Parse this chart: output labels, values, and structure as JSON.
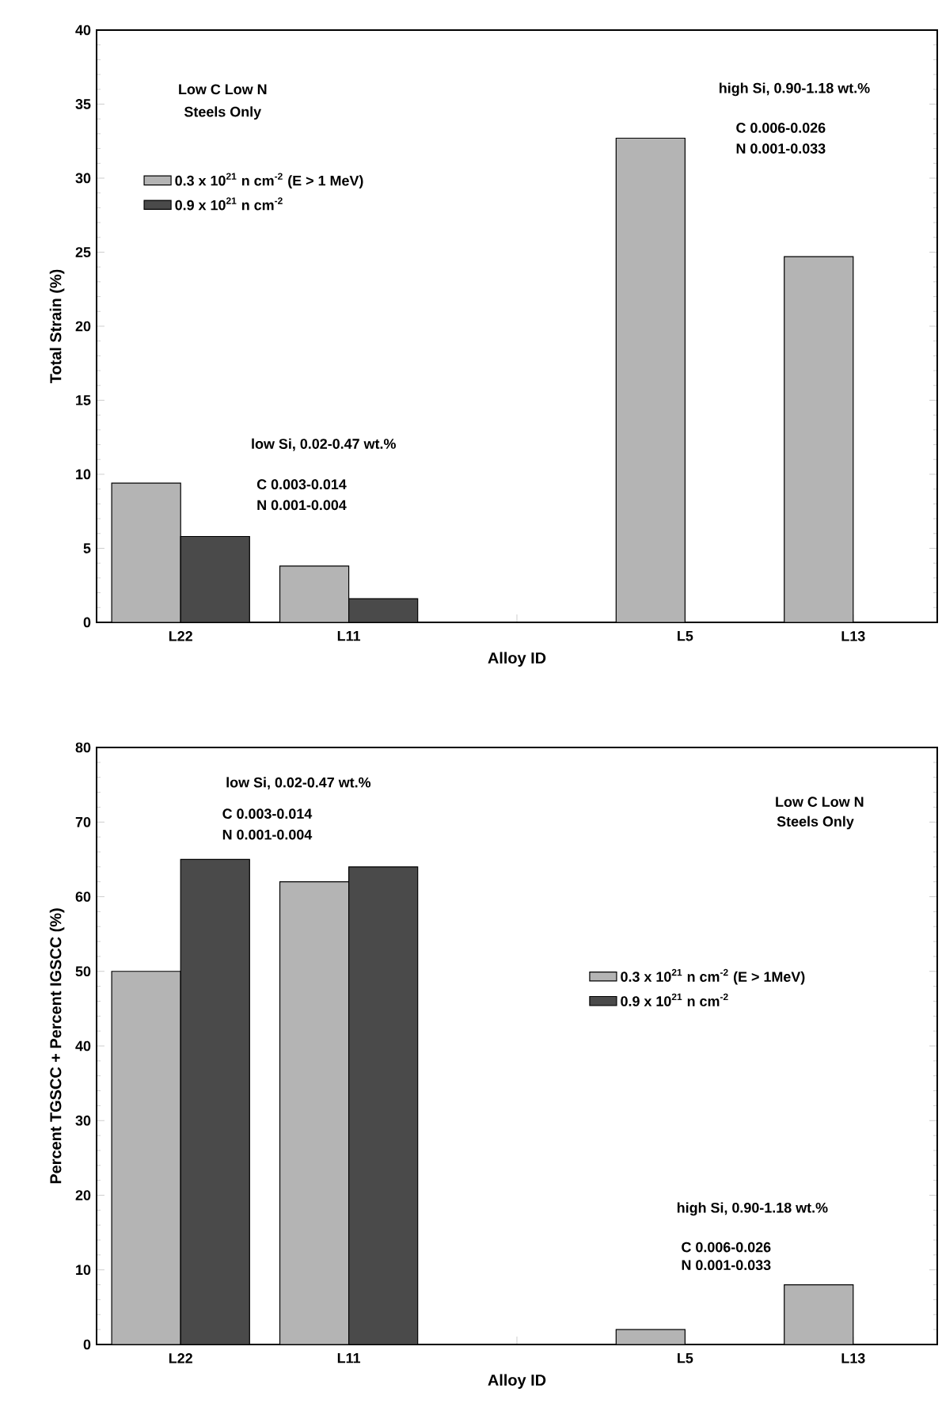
{
  "chart_data": [
    {
      "type": "bar",
      "xlabel": "Alloy ID",
      "ylabel": "Total Strain (%)",
      "categories": [
        "L22",
        "L11",
        null,
        "L5",
        "L13"
      ],
      "series": [
        {
          "name": "0.3 x 10$^{21}$ n cm$^{-2}$ (E > 1 MeV)",
          "color": "#b4b4b4",
          "values": [
            9.4,
            3.8,
            null,
            32.7,
            24.7
          ]
        },
        {
          "name": "0.9 x 10$^{21}$ n cm$^{-2}$",
          "color": "#4a4a4a",
          "values": [
            5.8,
            1.6,
            null,
            null,
            null
          ]
        }
      ],
      "ylim": [
        0,
        40
      ],
      "yticks": [
        0,
        5,
        10,
        15,
        20,
        25,
        30,
        35,
        40
      ],
      "legend": "top left",
      "annotations": [
        "Low C Low N",
        "Steels Only",
        "high Si, 0.90-1.18 wt.%",
        "C 0.006-0.026",
        "N 0.001-0.033",
        "low Si, 0.02-0.47 wt.%",
        "C 0.003-0.014",
        "N 0.001-0.004"
      ]
    },
    {
      "type": "bar",
      "xlabel": "Alloy ID",
      "ylabel": "Percent TGSCC + Percent IGSCC (%)",
      "categories": [
        "L22",
        "L11",
        null,
        "L5",
        "L13"
      ],
      "series": [
        {
          "name": "0.3 x 10$^{21}$ n cm$^{-2}$ (E > 1MeV)",
          "color": "#b4b4b4",
          "values": [
            50,
            62,
            null,
            2,
            8
          ]
        },
        {
          "name": "0.9 x 10$^{21}$ n cm$^{-2}$",
          "color": "#4a4a4a",
          "values": [
            65,
            64,
            null,
            null,
            null
          ]
        }
      ],
      "ylim": [
        0,
        80
      ],
      "yticks": [
        0,
        10,
        20,
        30,
        40,
        50,
        60,
        70,
        80
      ],
      "legend": "right",
      "annotations": [
        "low Si, 0.02-0.47 wt.%",
        "C 0.003-0.014",
        "N 0.001-0.004",
        "Low C Low N",
        "Steels Only",
        "high Si, 0.90-1.18 wt.%",
        "C 0.006-0.026",
        "N 0.001-0.033"
      ]
    }
  ]
}
